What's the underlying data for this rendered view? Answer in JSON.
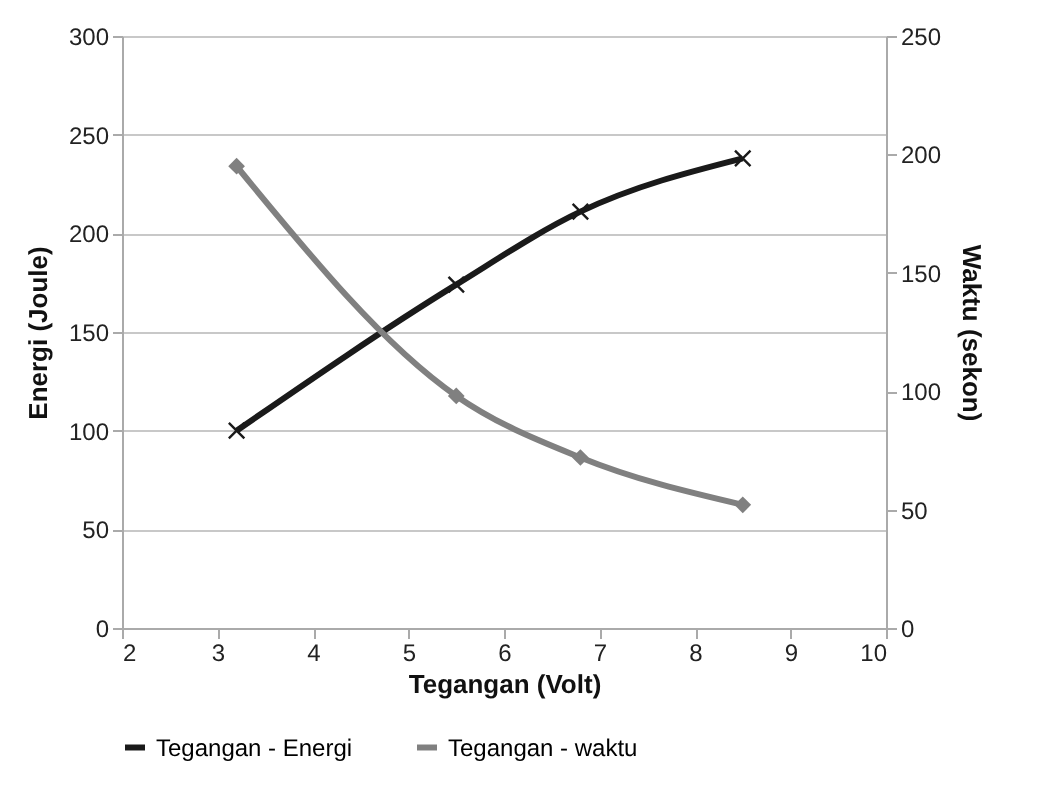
{
  "chart_data": {
    "type": "line",
    "xlabel": "Tegangan (Volt)",
    "ylabel": "Energi (Joule)",
    "y2label": "Waktu (sekon)",
    "xlim": [
      2,
      10
    ],
    "xticks": [
      2,
      3,
      4,
      5,
      6,
      7,
      8,
      9,
      10
    ],
    "ylim": [
      0,
      300
    ],
    "yticks": [
      0,
      50,
      100,
      150,
      200,
      250,
      300
    ],
    "y2lim": [
      0,
      250
    ],
    "y2ticks": [
      0,
      50,
      100,
      150,
      200,
      250
    ],
    "grid": "y",
    "legend": "bottom",
    "line_style": "solid",
    "series": [
      {
        "name": "Tegangan - Energi",
        "color": "#1a1a1a",
        "marker": "cross",
        "x": [
          3.2,
          5.5,
          6.8,
          8.5
        ],
        "values": [
          100,
          174,
          211,
          238
        ]
      },
      {
        "name": "Tegangan - waktu",
        "color": "#808080",
        "marker": "diamond",
        "axis": "y2",
        "x": [
          3.2,
          5.5,
          6.8,
          8.5
        ],
        "values": [
          195,
          98,
          72,
          52
        ]
      }
    ]
  }
}
